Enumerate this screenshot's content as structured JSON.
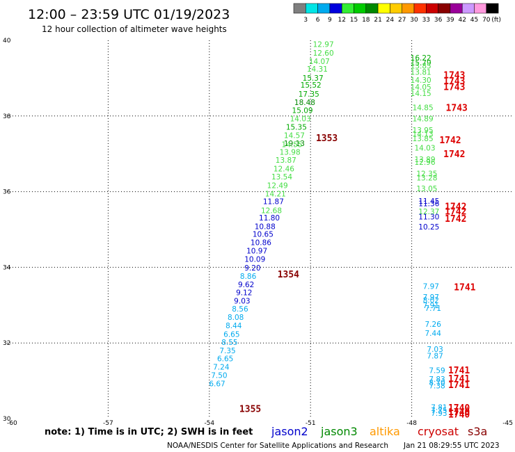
{
  "header": {
    "title": "12:00 – 23:59 UTC 01/19/2023",
    "subtitle": "12 hour collection of altimeter wave heights"
  },
  "colorbar": {
    "labels": [
      "3",
      "6",
      "9",
      "12",
      "15",
      "18",
      "21",
      "24",
      "27",
      "30",
      "33",
      "36",
      "39",
      "42",
      "45",
      "70"
    ],
    "unit": "(ft)",
    "colors": [
      "#7f7f7f",
      "#00e5e5",
      "#00aaee",
      "#0000dd",
      "#33ee33",
      "#00cc00",
      "#008800",
      "#ffff00",
      "#ffcc00",
      "#ff9900",
      "#ff3300",
      "#cc0000",
      "#880000",
      "#990099",
      "#cc99ff",
      "#ff99dd",
      "#000000"
    ]
  },
  "footer": {
    "note": "note:  1) Time is in UTC; 2) SWH is in feet",
    "credit": "NOAA/NESDIS Center for Satellite Applications and Research",
    "timestamp": "Jan 21 08:29:55 UTC 2023"
  },
  "satellites": [
    {
      "name": "jason2",
      "color": "#0000cc"
    },
    {
      "name": "jason3",
      "color": "#008800"
    },
    {
      "name": "altika",
      "color": "#ff9900"
    },
    {
      "name": "cryosat",
      "color": "#cc0000"
    },
    {
      "name": "s3a",
      "color": "#880000"
    }
  ],
  "chart_data": {
    "type": "scatter",
    "title": "12:00 – 23:59 UTC 01/19/2023",
    "xlabel": "",
    "ylabel": "",
    "xlim": [
      -60,
      -45
    ],
    "ylim": [
      30,
      40
    ],
    "xticks": [
      "-60",
      "-57",
      "-54",
      "-51",
      "-48",
      "-45"
    ],
    "yticks": [
      "30",
      "32",
      "34",
      "36",
      "38",
      "40"
    ],
    "grid": true,
    "track_labels": [
      {
        "text": "1353",
        "lon": -50.84,
        "lat": 37.43,
        "color": "#880000"
      },
      {
        "text": "1354",
        "lon": -51.98,
        "lat": 33.82,
        "color": "#880000"
      },
      {
        "text": "1355",
        "lon": -53.11,
        "lat": 30.27,
        "color": "#880000"
      },
      {
        "text": "1743",
        "lon": -47.06,
        "lat": 39.09,
        "color": "#dd0000"
      },
      {
        "text": "1743",
        "lon": -47.06,
        "lat": 38.93,
        "color": "#dd0000"
      },
      {
        "text": "1743",
        "lon": -47.06,
        "lat": 38.78,
        "color": "#dd0000"
      },
      {
        "text": "1743",
        "lon": -46.99,
        "lat": 38.23,
        "color": "#dd0000"
      },
      {
        "text": "1742",
        "lon": -47.18,
        "lat": 37.37,
        "color": "#dd0000"
      },
      {
        "text": "1742",
        "lon": -47.06,
        "lat": 37.0,
        "color": "#dd0000"
      },
      {
        "text": "1742",
        "lon": -47.02,
        "lat": 35.62,
        "color": "#dd0000"
      },
      {
        "text": "1742",
        "lon": -47.02,
        "lat": 35.49,
        "color": "#dd0000"
      },
      {
        "text": "1742",
        "lon": -47.02,
        "lat": 35.29,
        "color": "#dd0000"
      },
      {
        "text": "1741",
        "lon": -46.75,
        "lat": 33.48,
        "color": "#dd0000"
      },
      {
        "text": "1741",
        "lon": -46.92,
        "lat": 31.29,
        "color": "#dd0000"
      },
      {
        "text": "1741",
        "lon": -46.92,
        "lat": 31.07,
        "color": "#dd0000"
      },
      {
        "text": "1741",
        "lon": -46.92,
        "lat": 30.9,
        "color": "#dd0000"
      },
      {
        "text": "1740",
        "lon": -46.92,
        "lat": 30.29,
        "color": "#dd0000"
      },
      {
        "text": "1740",
        "lon": -46.92,
        "lat": 30.18,
        "color": "#dd0000"
      },
      {
        "text": "1740",
        "lon": -46.92,
        "lat": 30.12,
        "color": "#dd0000"
      }
    ],
    "series": [
      {
        "name": "jason2",
        "points": [
          {
            "lon": -50.93,
            "lat": 39.9,
            "v": "12.97",
            "color": "#44dd44"
          },
          {
            "lon": -50.93,
            "lat": 39.67,
            "v": "12.60",
            "color": "#44dd44"
          },
          {
            "lon": -51.05,
            "lat": 39.45,
            "v": "14.07",
            "color": "#44dd44"
          },
          {
            "lon": -51.11,
            "lat": 39.25,
            "v": "14.31",
            "color": "#44dd44"
          },
          {
            "lon": -51.24,
            "lat": 39.01,
            "v": "15.37",
            "color": "#00aa00"
          },
          {
            "lon": -51.3,
            "lat": 38.82,
            "v": "15.52",
            "color": "#00aa00"
          },
          {
            "lon": -51.36,
            "lat": 38.58,
            "v": "17.35",
            "color": "#00aa00"
          },
          {
            "lon": -51.48,
            "lat": 38.36,
            "v": "18.48",
            "color": "#008800"
          },
          {
            "lon": -51.55,
            "lat": 38.15,
            "v": "15.09",
            "color": "#00aa00"
          },
          {
            "lon": -51.61,
            "lat": 37.93,
            "v": "14.03",
            "color": "#44dd44"
          },
          {
            "lon": -51.73,
            "lat": 37.71,
            "v": "15.35",
            "color": "#00aa00"
          },
          {
            "lon": -51.79,
            "lat": 37.49,
            "v": "14.57",
            "color": "#44dd44"
          },
          {
            "lon": -51.79,
            "lat": 37.28,
            "v": "19.13",
            "color": "#008800"
          },
          {
            "lon": -51.86,
            "lat": 37.25,
            "v": "14.55",
            "color": "#44dd44"
          },
          {
            "lon": -51.92,
            "lat": 37.05,
            "v": "13.98",
            "color": "#44dd44"
          },
          {
            "lon": -52.04,
            "lat": 36.84,
            "v": "13.87",
            "color": "#44dd44"
          },
          {
            "lon": -52.1,
            "lat": 36.61,
            "v": "12.46",
            "color": "#44dd44"
          },
          {
            "lon": -52.16,
            "lat": 36.4,
            "v": "13.54",
            "color": "#44dd44"
          },
          {
            "lon": -52.29,
            "lat": 36.17,
            "v": "12.49",
            "color": "#44dd44"
          },
          {
            "lon": -52.35,
            "lat": 35.95,
            "v": "14.21",
            "color": "#44dd44"
          },
          {
            "lon": -52.41,
            "lat": 35.74,
            "v": "11.87",
            "color": "#0000cc"
          },
          {
            "lon": -52.47,
            "lat": 35.51,
            "v": "12.68",
            "color": "#44dd44"
          },
          {
            "lon": -52.53,
            "lat": 35.31,
            "v": "11.80",
            "color": "#0000cc"
          },
          {
            "lon": -52.66,
            "lat": 35.08,
            "v": "10.88",
            "color": "#0000cc"
          },
          {
            "lon": -52.72,
            "lat": 34.88,
            "v": "10.65",
            "color": "#0000cc"
          },
          {
            "lon": -52.78,
            "lat": 34.66,
            "v": "10.86",
            "color": "#0000cc"
          },
          {
            "lon": -52.9,
            "lat": 34.44,
            "v": "10.97",
            "color": "#0000cc"
          },
          {
            "lon": -52.96,
            "lat": 34.22,
            "v": "10.09",
            "color": "#0000cc"
          },
          {
            "lon": -52.96,
            "lat": 33.99,
            "v": "9.20",
            "color": "#0000cc"
          },
          {
            "lon": -53.09,
            "lat": 33.77,
            "v": "8.86",
            "color": "#00aaee"
          },
          {
            "lon": -53.15,
            "lat": 33.55,
            "v": "9.62",
            "color": "#0000cc"
          },
          {
            "lon": -53.21,
            "lat": 33.34,
            "v": "9.12",
            "color": "#0000cc"
          },
          {
            "lon": -53.27,
            "lat": 33.12,
            "v": "9.03",
            "color": "#0000cc"
          },
          {
            "lon": -53.33,
            "lat": 32.9,
            "v": "8.56",
            "color": "#00aaee"
          },
          {
            "lon": -53.46,
            "lat": 32.68,
            "v": "8.08",
            "color": "#00aaee"
          },
          {
            "lon": -53.52,
            "lat": 32.46,
            "v": "8.44",
            "color": "#00aaee"
          },
          {
            "lon": -53.58,
            "lat": 32.23,
            "v": "6.65",
            "color": "#00aaee"
          },
          {
            "lon": -53.64,
            "lat": 32.02,
            "v": "8.55",
            "color": "#00aaee"
          },
          {
            "lon": -53.7,
            "lat": 31.8,
            "v": "7.35",
            "color": "#00aaee"
          },
          {
            "lon": -53.77,
            "lat": 31.59,
            "v": "6.65",
            "color": "#00aaee"
          },
          {
            "lon": -53.89,
            "lat": 31.37,
            "v": "7.24",
            "color": "#00aaee"
          },
          {
            "lon": -53.95,
            "lat": 31.15,
            "v": "7.50",
            "color": "#00aaee"
          },
          {
            "lon": -54.01,
            "lat": 30.93,
            "v": "6.67",
            "color": "#00aaee"
          }
        ]
      },
      {
        "name": "cryosat",
        "points": [
          {
            "lon": -48.04,
            "lat": 39.54,
            "v": "16.22",
            "color": "#00aa00"
          },
          {
            "lon": -48.04,
            "lat": 39.41,
            "v": "15.79",
            "color": "#00aa00"
          },
          {
            "lon": -48.04,
            "lat": 39.33,
            "v": "13.85",
            "color": "#44dd44"
          },
          {
            "lon": -48.04,
            "lat": 39.16,
            "v": "13.81",
            "color": "#44dd44"
          },
          {
            "lon": -48.04,
            "lat": 38.95,
            "v": "14.30",
            "color": "#44dd44"
          },
          {
            "lon": -48.04,
            "lat": 38.77,
            "v": "14.05",
            "color": "#44dd44"
          },
          {
            "lon": -48.04,
            "lat": 38.6,
            "v": "14.15",
            "color": "#44dd44"
          },
          {
            "lon": -47.98,
            "lat": 38.23,
            "v": "14.85",
            "color": "#44dd44"
          },
          {
            "lon": -47.98,
            "lat": 37.93,
            "v": "14.89",
            "color": "#44dd44"
          },
          {
            "lon": -47.98,
            "lat": 37.63,
            "v": "13.95",
            "color": "#44dd44"
          },
          {
            "lon": -47.98,
            "lat": 37.53,
            "v": "14.13",
            "color": "#44dd44"
          },
          {
            "lon": -47.98,
            "lat": 37.41,
            "v": "13.85",
            "color": "#44dd44"
          },
          {
            "lon": -47.92,
            "lat": 37.16,
            "v": "14.03",
            "color": "#44dd44"
          },
          {
            "lon": -47.92,
            "lat": 36.86,
            "v": "13.89",
            "color": "#44dd44"
          },
          {
            "lon": -47.92,
            "lat": 36.78,
            "v": "12.96",
            "color": "#44dd44"
          },
          {
            "lon": -47.86,
            "lat": 36.48,
            "v": "12.35",
            "color": "#44dd44"
          },
          {
            "lon": -47.86,
            "lat": 36.37,
            "v": "13.28",
            "color": "#44dd44"
          },
          {
            "lon": -47.86,
            "lat": 36.08,
            "v": "13.05",
            "color": "#44dd44"
          },
          {
            "lon": -47.8,
            "lat": 35.75,
            "v": "11.45",
            "color": "#0000cc"
          },
          {
            "lon": -47.8,
            "lat": 35.69,
            "v": "11.36",
            "color": "#0000cc"
          },
          {
            "lon": -47.8,
            "lat": 35.48,
            "v": "12.37",
            "color": "#44dd44"
          },
          {
            "lon": -47.8,
            "lat": 35.34,
            "v": "11.30",
            "color": "#0000cc"
          },
          {
            "lon": -47.8,
            "lat": 35.07,
            "v": "10.25",
            "color": "#0000cc"
          },
          {
            "lon": -47.67,
            "lat": 33.5,
            "v": "7.97",
            "color": "#00aaee"
          },
          {
            "lon": -47.67,
            "lat": 33.22,
            "v": "7.97",
            "color": "#00aaee"
          },
          {
            "lon": -47.67,
            "lat": 33.13,
            "v": "8.02",
            "color": "#00aaee"
          },
          {
            "lon": -47.67,
            "lat": 33.0,
            "v": "7.91",
            "color": "#00aaee"
          },
          {
            "lon": -47.61,
            "lat": 32.92,
            "v": "7.71",
            "color": "#00aaee"
          },
          {
            "lon": -47.61,
            "lat": 32.5,
            "v": "7.26",
            "color": "#00aaee"
          },
          {
            "lon": -47.61,
            "lat": 32.26,
            "v": "7.44",
            "color": "#00aaee"
          },
          {
            "lon": -47.55,
            "lat": 31.84,
            "v": "7.03",
            "color": "#00aaee"
          },
          {
            "lon": -47.55,
            "lat": 31.66,
            "v": "7.87",
            "color": "#00aaee"
          },
          {
            "lon": -47.49,
            "lat": 31.28,
            "v": "7.59",
            "color": "#00aaee"
          },
          {
            "lon": -47.49,
            "lat": 31.05,
            "v": "7.83",
            "color": "#00aaee"
          },
          {
            "lon": -47.49,
            "lat": 30.96,
            "v": "8.70",
            "color": "#00aaee"
          },
          {
            "lon": -47.49,
            "lat": 30.87,
            "v": "7.38",
            "color": "#00aaee"
          },
          {
            "lon": -47.43,
            "lat": 30.3,
            "v": "7.81",
            "color": "#00aaee"
          },
          {
            "lon": -47.43,
            "lat": 30.22,
            "v": "7.75",
            "color": "#00aaee"
          },
          {
            "lon": -47.43,
            "lat": 30.15,
            "v": "7.93",
            "color": "#00aaee"
          }
        ]
      }
    ]
  }
}
